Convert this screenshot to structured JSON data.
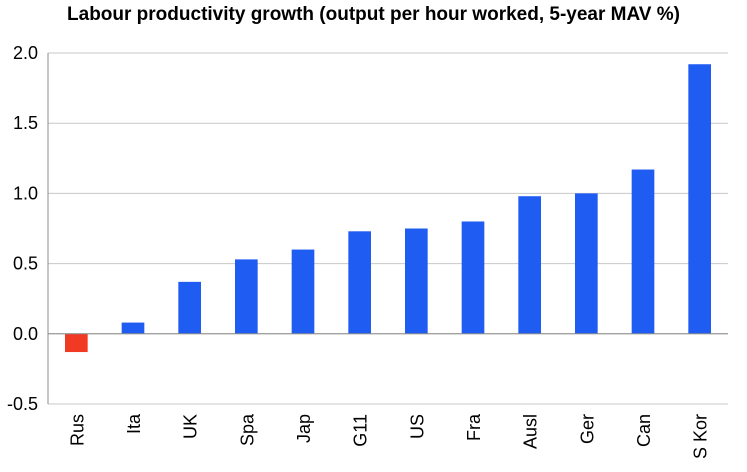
{
  "chart_data": {
    "type": "bar",
    "title": "Labour productivity growth (output per hour worked, 5-year MAV %)",
    "categories": [
      "Rus",
      "Ita",
      "UK",
      "Spa",
      "Jap",
      "G11",
      "US",
      "Fra",
      "Ausl",
      "Ger",
      "Can",
      "S Kor"
    ],
    "values": [
      -0.13,
      0.08,
      0.37,
      0.53,
      0.6,
      0.73,
      0.75,
      0.8,
      0.98,
      1.0,
      1.17,
      1.92
    ],
    "ylim": [
      -0.5,
      2.0
    ],
    "yticks": [
      -0.5,
      0.0,
      0.5,
      1.0,
      1.5,
      2.0
    ],
    "ytick_labels": [
      "-0.5",
      "0.0",
      "0.5",
      "1.0",
      "1.5",
      "2.0"
    ],
    "xlabel": "",
    "ylabel": "",
    "grid": true,
    "colors": {
      "positive": "#1f5cf2",
      "negative": "#f03a24",
      "grid": "#c8c8c8",
      "axis": "#8c8c8c"
    }
  }
}
